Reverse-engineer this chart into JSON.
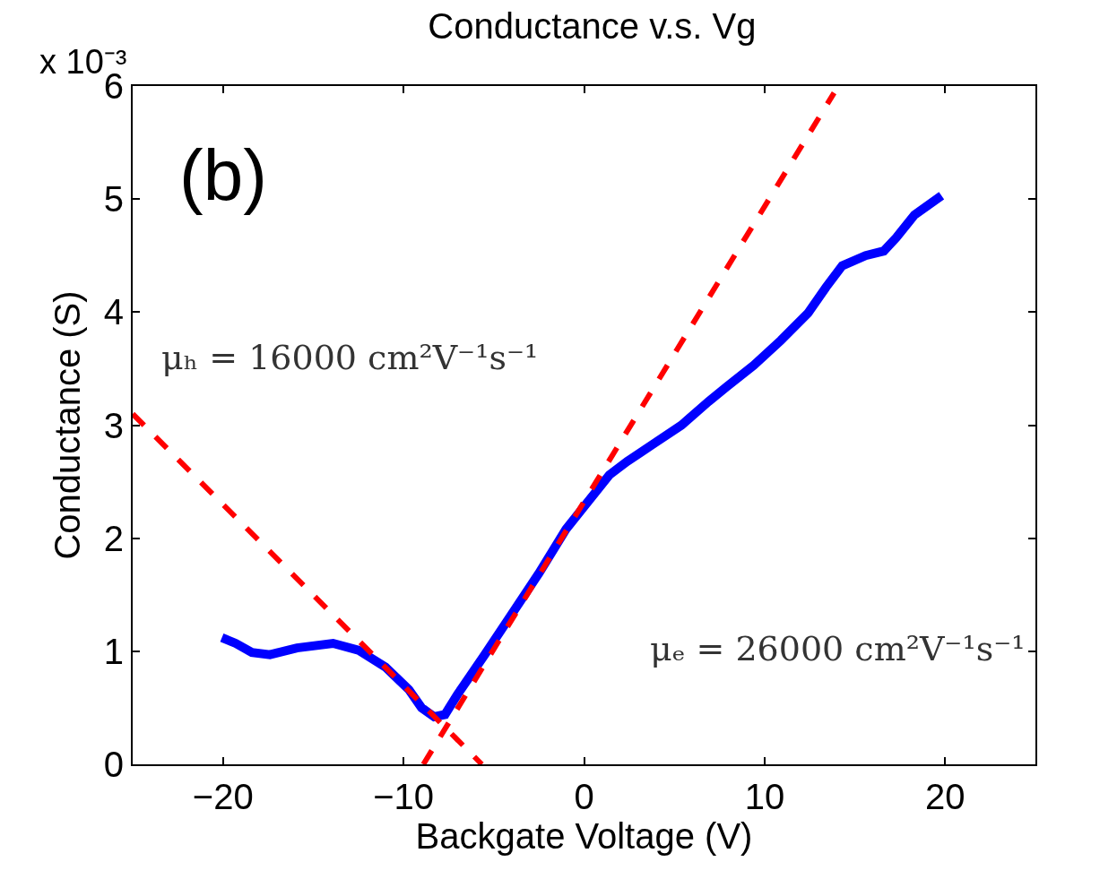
{
  "chart_data": {
    "type": "line",
    "title": "Conductance v.s. Vg",
    "xlabel": "Backgate Voltage (V)",
    "ylabel": "Conductance (S)",
    "annotations": [
      "x 10⁻³",
      "(b)",
      "μₕ = 16000 cm²V⁻¹s⁻¹",
      "μₑ = 26000 cm²V⁻¹s⁻¹"
    ],
    "xlim": [
      -25,
      25
    ],
    "xticks": [
      -20,
      -10,
      0,
      10,
      20
    ],
    "ylim": [
      0,
      6
    ],
    "yticks": [
      0,
      1,
      2,
      3,
      4,
      5,
      6
    ],
    "grid": false,
    "marker": "none",
    "series": [
      {
        "color": "#0000ff",
        "line_style": "solid",
        "x": [
          -20.06,
          -19.3,
          -18.4,
          -17.4,
          -15.9,
          -13.9,
          -12.5,
          -11.0,
          -9.7,
          -9.0,
          -8.3,
          -7.7,
          -7.0,
          -5.5,
          -4.0,
          -2.5,
          -1.0,
          0,
          1.4,
          2.4,
          3.9,
          5.4,
          6.9,
          7.9,
          9.4,
          10.9,
          12.4,
          13.4,
          14.3,
          15.6,
          16.6,
          17.3,
          18.3,
          19.8
        ],
        "values": [
          1.12,
          1.07,
          0.99,
          0.97,
          1.03,
          1.07,
          1.01,
          0.86,
          0.66,
          0.5,
          0.42,
          0.44,
          0.62,
          0.97,
          1.33,
          1.69,
          2.08,
          2.28,
          2.56,
          2.68,
          2.84,
          3.0,
          3.21,
          3.34,
          3.53,
          3.75,
          3.99,
          4.22,
          4.41,
          4.5,
          4.54,
          4.66,
          4.86,
          5.03
        ]
      },
      {
        "color": "#ff0000",
        "line_style": "dashed",
        "x": [
          -8.9,
          13.85
        ],
        "values": [
          0,
          5.94
        ]
      },
      {
        "color": "#ff0000",
        "line_style": "dashed",
        "x": [
          -25,
          -5.66
        ],
        "values": [
          3.1,
          0
        ]
      }
    ]
  }
}
